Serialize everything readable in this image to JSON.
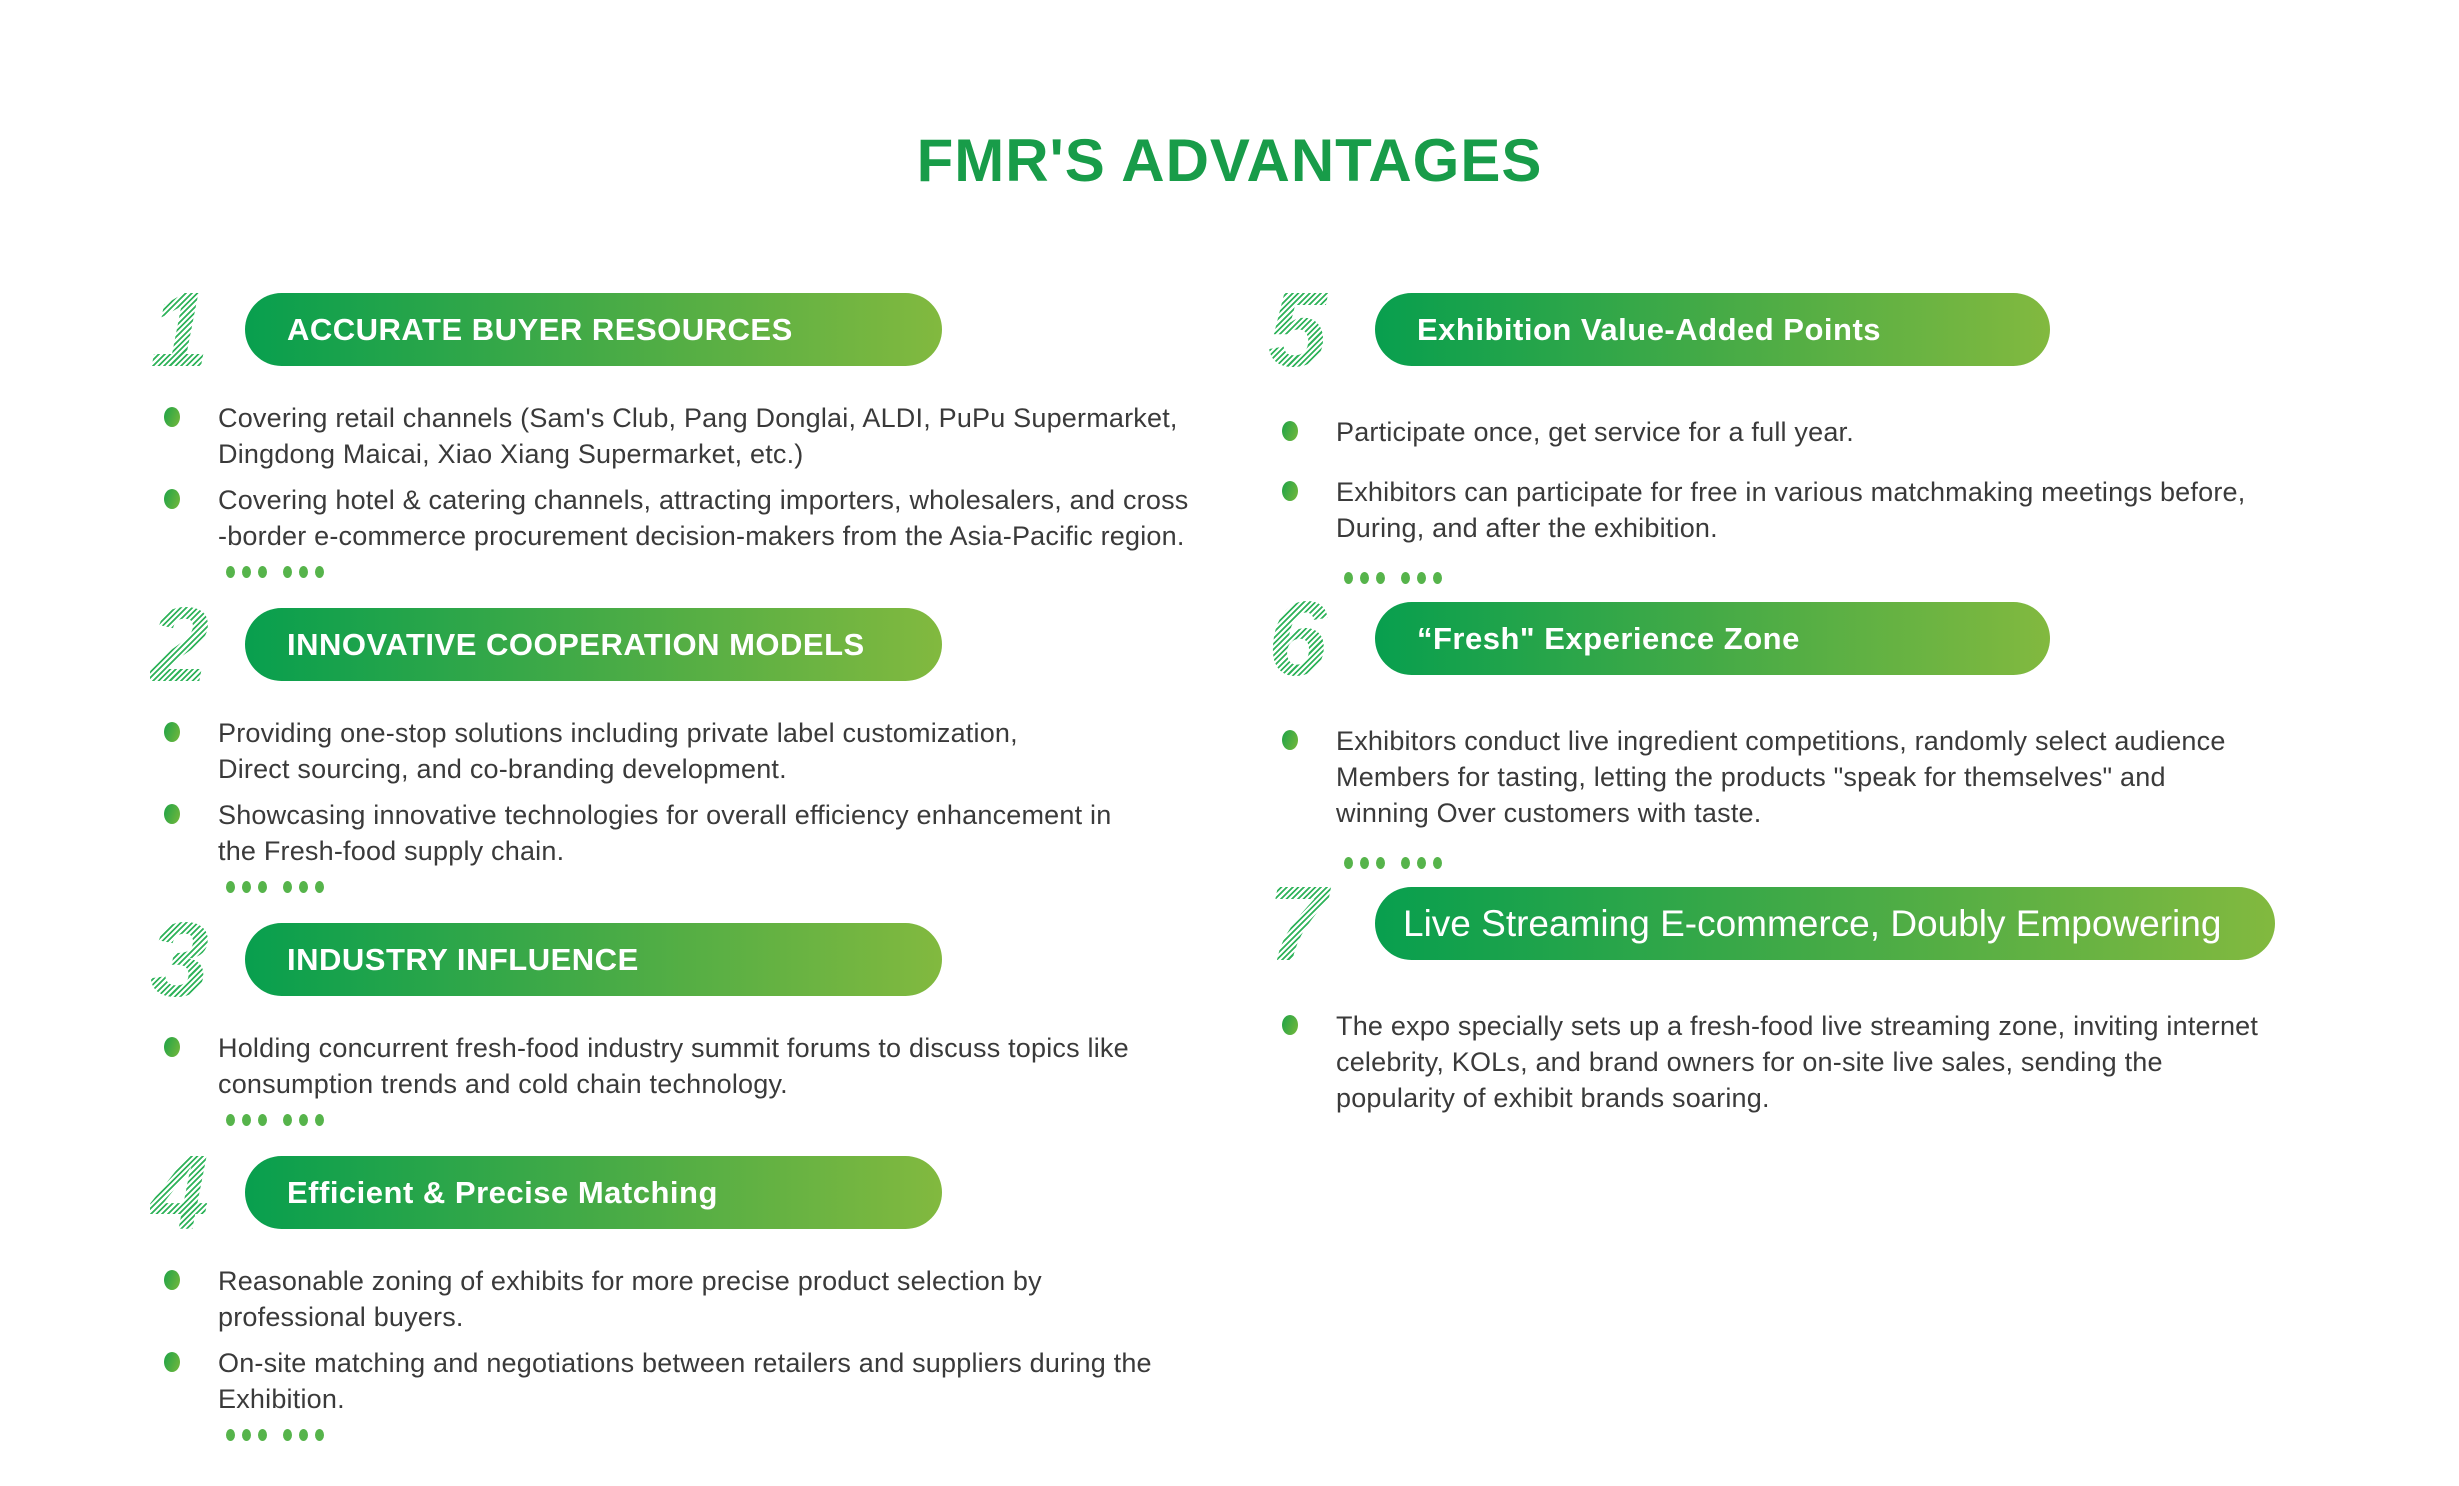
{
  "page": {
    "title": "FMR'S ADVANTAGES"
  },
  "colors": {
    "title_green": "#189c49",
    "banner_gradient_start": "#089f4e",
    "banner_gradient_end": "#82b93f",
    "bullet_dot_green": "#3aa93f",
    "decorative_dot_green": "#56b44b",
    "body_text": "#3a3a3a",
    "banner_text": "#ffffff"
  },
  "sections": [
    {
      "number": "1",
      "heading": "ACCURATE BUYER RESOURCES",
      "bullets": [
        "Covering retail channels (Sam's Club, Pang Donglai, ALDI, PuPu Supermarket,\nDingdong Maicai, Xiao Xiang Supermarket, etc.)",
        "Covering hotel & catering channels, attracting importers, wholesalers, and cross\n-border e-commerce procurement decision-makers from the Asia-Pacific region."
      ],
      "decorative_dots": true
    },
    {
      "number": "2",
      "heading": "INNOVATIVE COOPERATION MODELS",
      "bullets": [
        "Providing one-stop solutions including private label customization,\nDirect sourcing, and co-branding development.",
        "Showcasing innovative technologies for overall efficiency enhancement in\nthe Fresh-food supply chain."
      ],
      "decorative_dots": true
    },
    {
      "number": "3",
      "heading": "INDUSTRY INFLUENCE",
      "bullets": [
        "Holding concurrent fresh-food industry summit forums to discuss topics like\nconsumption trends and cold chain technology."
      ],
      "decorative_dots": true
    },
    {
      "number": "4",
      "heading": "Efficient & Precise Matching",
      "bullets": [
        "Reasonable zoning of exhibits for more precise product selection by\nprofessional buyers.",
        "On-site matching and negotiations between retailers and suppliers during the\nExhibition."
      ],
      "decorative_dots": true
    },
    {
      "number": "5",
      "heading": "Exhibition Value-Added Points",
      "bullets": [
        "Participate once, get service for a full year.",
        "Exhibitors can participate for free in various matchmaking meetings before,\nDuring, and after the exhibition."
      ],
      "decorative_dots": true
    },
    {
      "number": "6",
      "heading": "“Fresh\" Experience Zone",
      "bullets": [
        "Exhibitors conduct live ingredient competitions, randomly select audience\nMembers for tasting, letting the products \"speak for themselves\" and\nwinning Over customers with taste."
      ],
      "decorative_dots": true
    },
    {
      "number": "7",
      "heading": "Live Streaming E-commerce, Doubly Empowering",
      "bullets": [
        "The expo specially sets up a fresh-food live streaming zone, inviting internet\ncelebrity, KOLs, and brand owners for on-site live sales, sending the\npopularity of exhibit brands soaring."
      ],
      "decorative_dots": false
    }
  ]
}
